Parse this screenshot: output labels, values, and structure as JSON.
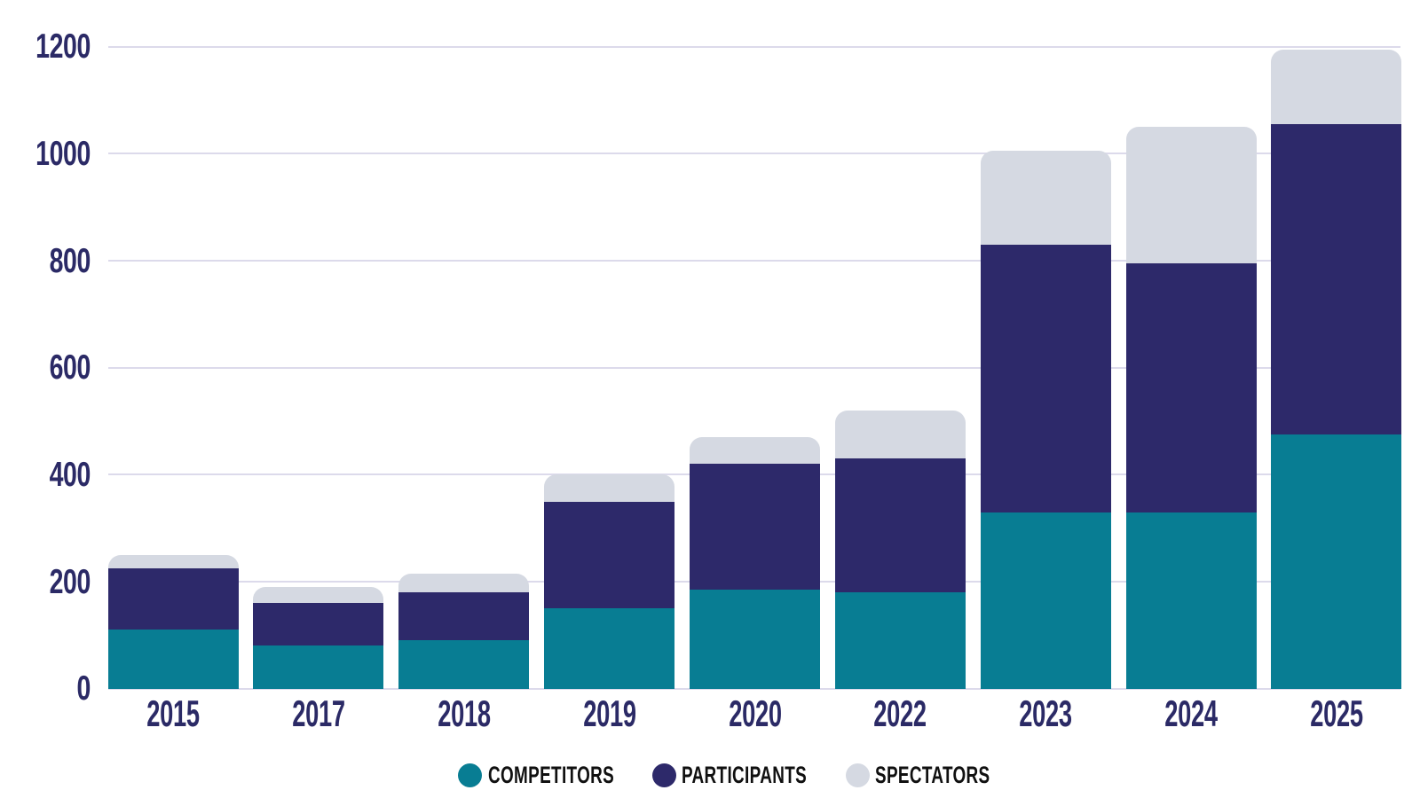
{
  "chart": {
    "background": "#ffffff",
    "axis_label_color": "#2b2a66",
    "gridline_color": "#dcdaeb",
    "legend_text_color": "#101010"
  },
  "chart_data": {
    "type": "bar",
    "stacked": true,
    "title": "",
    "xlabel": "",
    "ylabel": "",
    "categories": [
      "2015",
      "2017",
      "2018",
      "2019",
      "2020",
      "2022",
      "2023",
      "2024",
      "2025"
    ],
    "series": [
      {
        "name": "COMPETITORS",
        "color": "#087d93",
        "values": [
          110,
          80,
          90,
          150,
          185,
          180,
          330,
          330,
          475
        ]
      },
      {
        "name": "PARTICIPANTS",
        "color": "#2d296a",
        "values": [
          115,
          80,
          90,
          200,
          235,
          250,
          500,
          465,
          580
        ]
      },
      {
        "name": "SPECTATORS",
        "color": "#d5d9e2",
        "values": [
          25,
          30,
          35,
          50,
          50,
          90,
          175,
          255,
          140
        ]
      }
    ],
    "totals": [
      250,
      190,
      215,
      400,
      470,
      520,
      1005,
      1050,
      1195
    ],
    "ylim": [
      0,
      1200
    ],
    "yticks": [
      0,
      200,
      400,
      600,
      800,
      1000,
      1200
    ],
    "grid": true,
    "legend_position": "bottom"
  }
}
